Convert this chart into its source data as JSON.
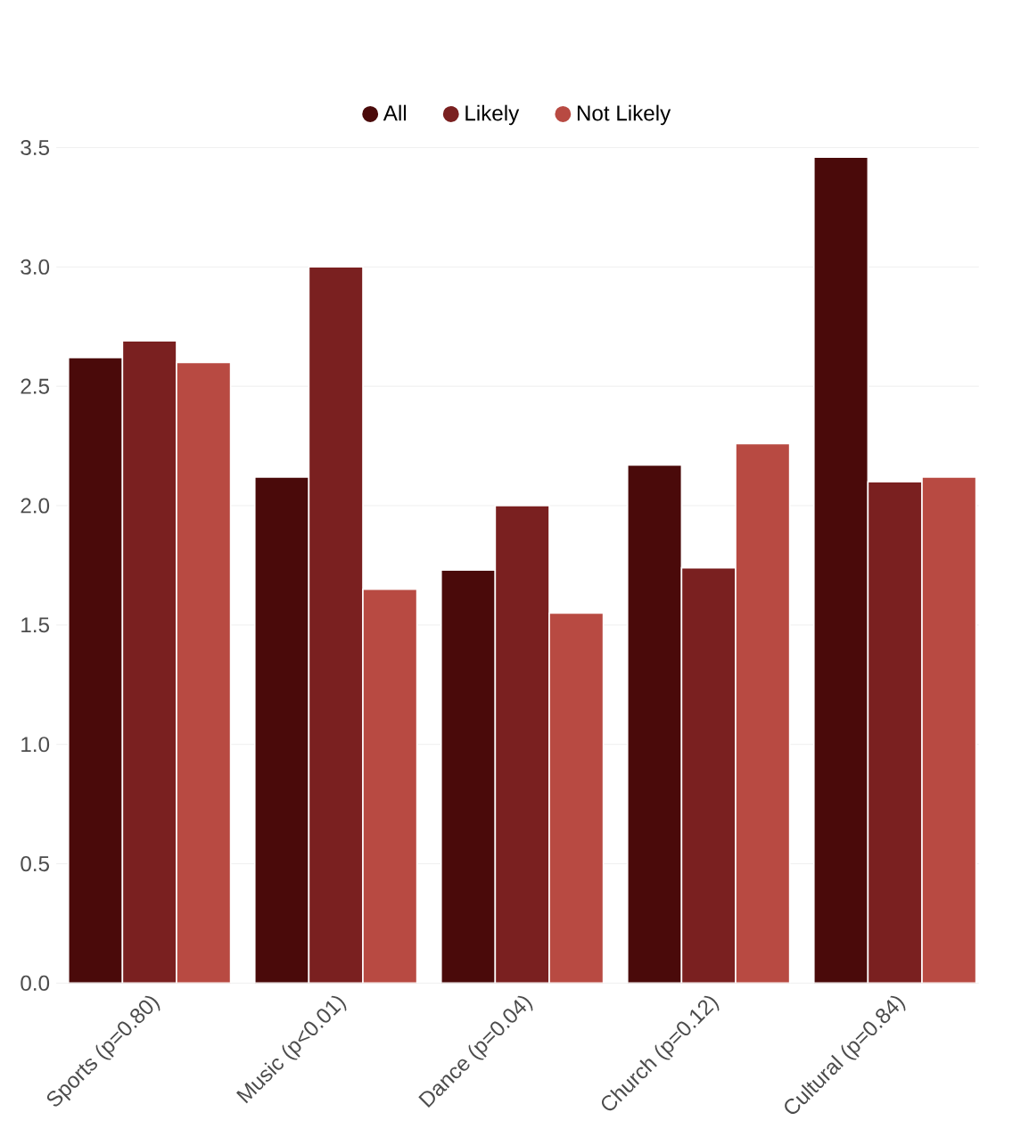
{
  "chart_data": {
    "type": "bar",
    "categories": [
      "Sports (p=0.80)",
      "Music (p<0.01)",
      "Dance (p=0.04)",
      "Church (p=0.12)",
      "Cultural (p=0.84)"
    ],
    "series": [
      {
        "name": "All",
        "color": "#4a0a0a",
        "values": [
          2.62,
          2.12,
          1.73,
          2.17,
          3.46
        ]
      },
      {
        "name": "Likely",
        "color": "#7a2020",
        "values": [
          2.69,
          3.0,
          2.0,
          1.74,
          2.1
        ]
      },
      {
        "name": "Not Likely",
        "color": "#b84a42",
        "values": [
          2.6,
          1.65,
          1.55,
          2.26,
          2.12
        ]
      }
    ],
    "ylim": [
      0,
      3.5
    ],
    "yticks": [
      {
        "value": 0,
        "label": "0.0"
      },
      {
        "value": 0.5,
        "label": "0.5"
      },
      {
        "value": 1,
        "label": "1.0"
      },
      {
        "value": 1.5,
        "label": "1.5"
      },
      {
        "value": 2,
        "label": "2.0"
      },
      {
        "value": 2.5,
        "label": "2.5"
      },
      {
        "value": 3,
        "label": "3.0"
      },
      {
        "value": 3.5,
        "label": "3.5"
      }
    ],
    "grid": "y",
    "legend": "top"
  }
}
